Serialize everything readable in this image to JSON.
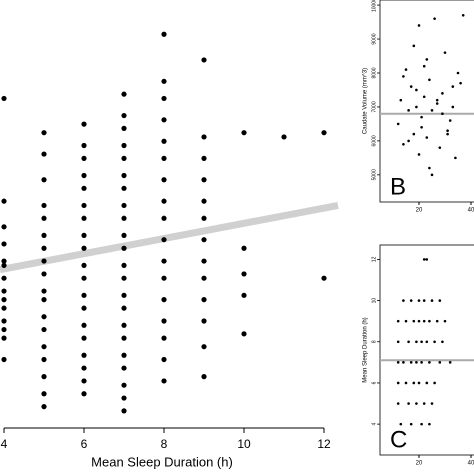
{
  "chart_data": [
    {
      "type": "scatter",
      "xlabel": "Mean Sleep Duration (h)",
      "xlim": [
        3.9,
        12.5
      ],
      "ylim": [
        0,
        100
      ],
      "xticks": [
        4,
        6,
        8,
        10,
        12
      ],
      "yticks": [],
      "x": [
        4,
        4,
        4,
        4,
        4,
        4,
        4,
        4,
        4,
        4,
        4,
        4,
        4,
        4,
        5,
        5,
        5,
        5,
        5,
        5,
        5,
        5,
        5,
        5,
        5,
        5,
        5,
        5,
        5,
        5,
        5,
        5,
        6,
        6,
        6,
        6,
        6,
        6,
        6,
        6,
        6,
        6,
        6,
        6,
        6,
        6,
        6,
        6,
        6,
        6,
        6,
        7,
        7,
        7,
        7,
        7,
        7,
        7,
        7,
        7,
        7,
        7,
        7,
        7,
        7,
        7,
        7,
        7,
        7,
        7,
        7,
        7,
        7,
        8,
        8,
        8,
        8,
        8,
        8,
        8,
        8,
        8,
        8,
        8,
        8,
        8,
        8,
        8,
        8,
        8,
        9,
        9,
        9,
        9,
        9,
        9,
        9,
        9,
        9,
        9,
        9,
        9,
        9,
        10,
        10,
        10,
        10,
        10,
        11,
        12,
        12
      ],
      "y": [
        77,
        53,
        47,
        43,
        39,
        38,
        35,
        32,
        30,
        28,
        25,
        23,
        21,
        16,
        69,
        64,
        58,
        52,
        49,
        45,
        42,
        39,
        36,
        32,
        30,
        26,
        23,
        19,
        16,
        12,
        8,
        5,
        71,
        66,
        63,
        59,
        56,
        52,
        49,
        45,
        42,
        38,
        35,
        31,
        28,
        24,
        21,
        17,
        14,
        11,
        8,
        78,
        73,
        70,
        66,
        63,
        59,
        56,
        52,
        49,
        45,
        42,
        38,
        35,
        31,
        28,
        24,
        21,
        17,
        14,
        10,
        7,
        4,
        92,
        81,
        77,
        72,
        67,
        63,
        58,
        53,
        49,
        44,
        39,
        35,
        30,
        25,
        21,
        16,
        11,
        86,
        68,
        63,
        58,
        53,
        49,
        44,
        39,
        35,
        30,
        25,
        19,
        12,
        69,
        42,
        36,
        31,
        22,
        68,
        69,
        35
      ],
      "color": "#000000",
      "fit": {
        "x": [
          3.9,
          12.35
        ],
        "y": [
          37,
          52
        ],
        "color": "#d0d0d0"
      }
    },
    {
      "type": "scatter",
      "ylabel": "Caudate Volume (mm^3)",
      "panel_label": "B",
      "xlim": [
        5,
        45
      ],
      "ylim": [
        4200,
        10150
      ],
      "xticks": [
        20,
        40
      ],
      "yticks": [
        5000,
        6000,
        7000,
        8000,
        9000,
        10000
      ],
      "x": [
        12,
        13,
        14,
        15,
        16,
        17,
        18,
        18,
        19,
        20,
        20,
        21,
        22,
        22,
        23,
        24,
        24,
        25,
        26,
        27,
        28,
        29,
        30,
        31,
        32,
        33,
        34,
        35,
        36,
        37,
        14,
        16,
        19,
        21,
        23,
        25,
        27,
        29,
        31,
        33
      ],
      "y": [
        6500,
        7200,
        5900,
        8100,
        6900,
        7600,
        6200,
        8800,
        7000,
        5600,
        9400,
        6700,
        7300,
        8200,
        6100,
        7800,
        5200,
        6900,
        9600,
        7100,
        5800,
        7400,
        8600,
        6300,
        6600,
        7000,
        5500,
        8000,
        7700,
        9700,
        7900,
        6000,
        7500,
        6400,
        8400,
        5000,
        7200,
        6800,
        6200,
        7600
      ],
      "color": "#000000",
      "fit": {
        "x": [
          5,
          45
        ],
        "y": [
          6800,
          6800
        ],
        "color": "#aaaaaa"
      }
    },
    {
      "type": "scatter",
      "ylabel": "Mean Sleep Duration (h)",
      "panel_label": "C",
      "xlim": [
        5,
        45
      ],
      "ylim": [
        2.5,
        12.7
      ],
      "xticks": [
        20,
        40
      ],
      "yticks": [
        4,
        6,
        8,
        10,
        12
      ],
      "x": [
        22,
        23,
        14,
        17,
        20,
        22,
        25,
        28,
        12,
        15,
        18,
        20,
        22,
        24,
        27,
        30,
        12,
        16,
        19,
        21,
        23,
        26,
        29,
        12,
        14,
        17,
        19,
        21,
        24,
        28,
        32,
        12,
        15,
        18,
        20,
        23,
        26,
        12,
        16,
        19,
        22,
        25,
        13,
        17,
        21,
        24
      ],
      "y": [
        12,
        12,
        10,
        10,
        10,
        10,
        10,
        10,
        9,
        9,
        9,
        9,
        9,
        9,
        9,
        9,
        8,
        8,
        8,
        8,
        8,
        8,
        8,
        7,
        7,
        7,
        7,
        7,
        7,
        7,
        7,
        6,
        6,
        6,
        6,
        6,
        6,
        5,
        5,
        5,
        5,
        5,
        4,
        4,
        4,
        4
      ],
      "color": "#000000",
      "fit": {
        "x": [
          5,
          45
        ],
        "y": [
          7.1,
          7.1
        ],
        "color": "#aaaaaa"
      }
    }
  ]
}
